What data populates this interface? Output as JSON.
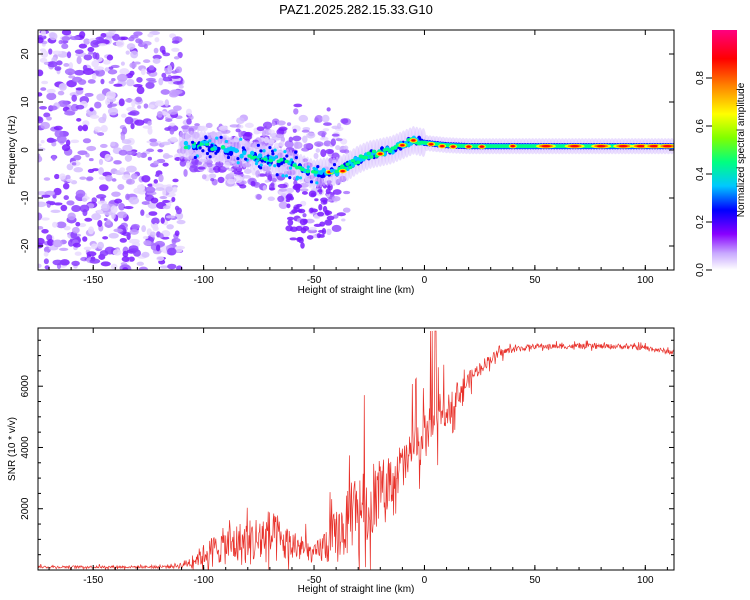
{
  "title": "PAZ1.2025.282.15.33.G10",
  "chart_data": [
    {
      "type": "heatmap",
      "title": "PAZ1.2025.282.15.33.G10",
      "xlabel": "Height of straight line (km)",
      "ylabel": "Frequency (Hz)",
      "xlim": [
        -175,
        113
      ],
      "ylim": [
        -25,
        25
      ],
      "xticks": [
        -150,
        -100,
        -50,
        0,
        50,
        100
      ],
      "yticks": [
        -20,
        -10,
        0,
        10,
        20
      ],
      "colorbar": {
        "label": "Normalized spectral amplitude",
        "range": [
          0.0,
          1.0
        ],
        "ticks": [
          "0.0",
          "0.2",
          "0.4",
          "0.6",
          "0.8"
        ],
        "colormap": [
          "#ffffff",
          "#c8a8ff",
          "#8800ff",
          "#0000ff",
          "#00c8ff",
          "#00ff80",
          "#80ff00",
          "#ffff00",
          "#ff8000",
          "#ff0000",
          "#ff0080"
        ]
      },
      "ridge": {
        "x": [
          -110,
          -100,
          -90,
          -80,
          -70,
          -60,
          -55,
          -50,
          -45,
          -40,
          -35,
          -30,
          -25,
          -20,
          -15,
          -10,
          -5,
          0,
          10,
          20,
          40,
          60,
          80,
          100,
          113
        ],
        "freq": [
          1,
          1,
          0,
          -1,
          -2,
          -3,
          -4,
          -5,
          -4.5,
          -4.5,
          -3.5,
          -2,
          -1,
          -0.5,
          0,
          1,
          2,
          1.5,
          1,
          0.8,
          0.8,
          0.8,
          0.8,
          0.8,
          0.8
        ]
      }
    },
    {
      "type": "line",
      "xlabel": "Height of straight line (km)",
      "ylabel": "SNR (10 * v/v)",
      "xlim": [
        -175,
        113
      ],
      "ylim": [
        0,
        7900
      ],
      "xticks": [
        -150,
        -100,
        -50,
        0,
        50,
        100
      ],
      "yticks": [
        2000,
        4000,
        6000
      ],
      "series": [
        {
          "name": "SNR",
          "color": "#e8312a",
          "x": [
            -175,
            -160,
            -140,
            -120,
            -110,
            -105,
            -100,
            -95,
            -90,
            -85,
            -80,
            -75,
            -70,
            -65,
            -60,
            -55,
            -50,
            -45,
            -40,
            -35,
            -30,
            -25,
            -20,
            -15,
            -10,
            -5,
            0,
            5,
            10,
            15,
            20,
            25,
            30,
            35,
            40,
            45,
            50,
            60,
            70,
            80,
            90,
            100,
            113
          ],
          "y": [
            100,
            100,
            100,
            100,
            150,
            300,
            500,
            700,
            800,
            850,
            900,
            1000,
            1100,
            900,
            800,
            700,
            500,
            800,
            1100,
            1500,
            2200,
            2000,
            2600,
            3000,
            3400,
            3900,
            4300,
            4600,
            5200,
            5700,
            6200,
            6600,
            6900,
            7100,
            7200,
            7250,
            7300,
            7300,
            7300,
            7300,
            7300,
            7250,
            7100
          ],
          "spread": [
            60,
            60,
            60,
            60,
            150,
            300,
            500,
            700,
            900,
            1000,
            1100,
            1200,
            1300,
            1000,
            800,
            600,
            400,
            900,
            1300,
            1500,
            1700,
            1600,
            1300,
            1200,
            1100,
            1000,
            1100,
            900,
            700,
            600,
            400,
            300,
            250,
            200,
            150,
            130,
            120,
            120,
            120,
            120,
            120,
            120,
            120
          ]
        }
      ]
    }
  ]
}
